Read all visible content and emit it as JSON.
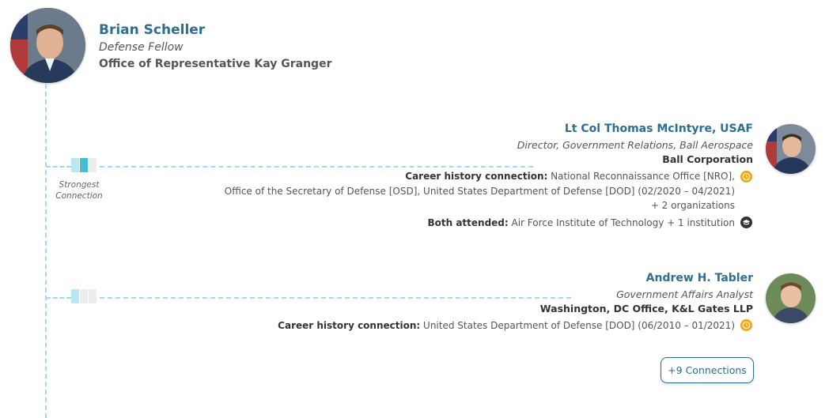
{
  "main_person": {
    "name": "Brian Scheller",
    "title": "Defense Fellow",
    "organization": "Office of Representative Kay Granger"
  },
  "strength_label_line1": "Strongest",
  "strength_label_line2": "Connection",
  "connections": [
    {
      "name": "Lt Col Thomas McIntyre, USAF",
      "title": "Director, Government Relations, Ball Aerospace",
      "organization": "Ball Corporation",
      "strength": 2,
      "career_label": "Career history connection:",
      "career_line1": "National Reconnaissance Office [NRO],",
      "career_line2": "Office of the Secretary of Defense [OSD], United States Department of Defense [DOD] (02/2020 – 04/2021)",
      "career_more": "+ 2 organizations",
      "education_label": "Both attended:",
      "education_value": "Air Force Institute of Technology + 1 institution"
    },
    {
      "name": "Andrew H. Tabler",
      "title": "Government Affairs Analyst",
      "organization": "Washington, DC Office, K&L Gates LLP",
      "strength": 1,
      "career_label": "Career history connection:",
      "career_line1": "United States Department of Defense [DOD] (06/2010 – 01/2021)"
    }
  ],
  "more_button": "+9 Connections",
  "icons": {
    "career": "clock-icon",
    "education": "graduation-cap-icon"
  },
  "colors": {
    "name": "#2c6f92",
    "timeline": "#9fdcea",
    "meter_strong": "#45bcd8",
    "career_icon": "#f0a51a"
  }
}
